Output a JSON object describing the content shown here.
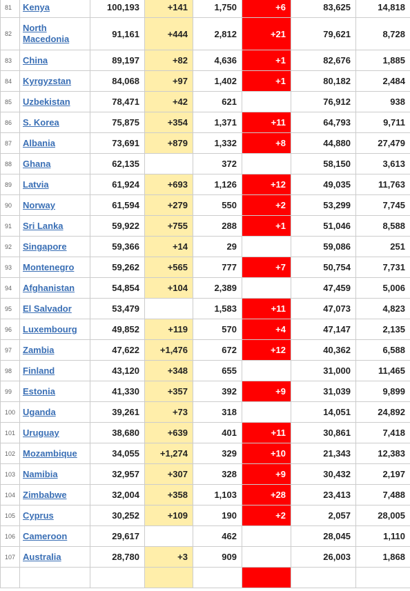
{
  "table": {
    "rows": [
      {
        "rank": "81",
        "country": "Kenya",
        "total_cases": "100,193",
        "new_cases": "+141",
        "total_deaths": "1,750",
        "new_deaths": "+6",
        "total_recovered": "83,625",
        "active_cases": "14,818"
      },
      {
        "rank": "82",
        "country": "North Macedonia",
        "total_cases": "91,161",
        "new_cases": "+444",
        "total_deaths": "2,812",
        "new_deaths": "+21",
        "total_recovered": "79,621",
        "active_cases": "8,728"
      },
      {
        "rank": "83",
        "country": "China",
        "total_cases": "89,197",
        "new_cases": "+82",
        "total_deaths": "4,636",
        "new_deaths": "+1",
        "total_recovered": "82,676",
        "active_cases": "1,885"
      },
      {
        "rank": "84",
        "country": "Kyrgyzstan",
        "total_cases": "84,068",
        "new_cases": "+97",
        "total_deaths": "1,402",
        "new_deaths": "+1",
        "total_recovered": "80,182",
        "active_cases": "2,484"
      },
      {
        "rank": "85",
        "country": "Uzbekistan",
        "total_cases": "78,471",
        "new_cases": "+42",
        "total_deaths": "621",
        "new_deaths": "",
        "total_recovered": "76,912",
        "active_cases": "938"
      },
      {
        "rank": "86",
        "country": "S. Korea",
        "total_cases": "75,875",
        "new_cases": "+354",
        "total_deaths": "1,371",
        "new_deaths": "+11",
        "total_recovered": "64,793",
        "active_cases": "9,711"
      },
      {
        "rank": "87",
        "country": "Albania",
        "total_cases": "73,691",
        "new_cases": "+879",
        "total_deaths": "1,332",
        "new_deaths": "+8",
        "total_recovered": "44,880",
        "active_cases": "27,479"
      },
      {
        "rank": "88",
        "country": "Ghana",
        "total_cases": "62,135",
        "new_cases": "",
        "total_deaths": "372",
        "new_deaths": "",
        "total_recovered": "58,150",
        "active_cases": "3,613"
      },
      {
        "rank": "89",
        "country": "Latvia",
        "total_cases": "61,924",
        "new_cases": "+693",
        "total_deaths": "1,126",
        "new_deaths": "+12",
        "total_recovered": "49,035",
        "active_cases": "11,763"
      },
      {
        "rank": "90",
        "country": "Norway",
        "total_cases": "61,594",
        "new_cases": "+279",
        "total_deaths": "550",
        "new_deaths": "+2",
        "total_recovered": "53,299",
        "active_cases": "7,745"
      },
      {
        "rank": "91",
        "country": "Sri Lanka",
        "total_cases": "59,922",
        "new_cases": "+755",
        "total_deaths": "288",
        "new_deaths": "+1",
        "total_recovered": "51,046",
        "active_cases": "8,588"
      },
      {
        "rank": "92",
        "country": "Singapore",
        "total_cases": "59,366",
        "new_cases": "+14",
        "total_deaths": "29",
        "new_deaths": "",
        "total_recovered": "59,086",
        "active_cases": "251"
      },
      {
        "rank": "93",
        "country": "Montenegro",
        "total_cases": "59,262",
        "new_cases": "+565",
        "total_deaths": "777",
        "new_deaths": "+7",
        "total_recovered": "50,754",
        "active_cases": "7,731"
      },
      {
        "rank": "94",
        "country": "Afghanistan",
        "total_cases": "54,854",
        "new_cases": "+104",
        "total_deaths": "2,389",
        "new_deaths": "",
        "total_recovered": "47,459",
        "active_cases": "5,006"
      },
      {
        "rank": "95",
        "country": "El Salvador",
        "total_cases": "53,479",
        "new_cases": "",
        "total_deaths": "1,583",
        "new_deaths": "+11",
        "total_recovered": "47,073",
        "active_cases": "4,823"
      },
      {
        "rank": "96",
        "country": "Luxembourg",
        "total_cases": "49,852",
        "new_cases": "+119",
        "total_deaths": "570",
        "new_deaths": "+4",
        "total_recovered": "47,147",
        "active_cases": "2,135"
      },
      {
        "rank": "97",
        "country": "Zambia",
        "total_cases": "47,622",
        "new_cases": "+1,476",
        "total_deaths": "672",
        "new_deaths": "+12",
        "total_recovered": "40,362",
        "active_cases": "6,588"
      },
      {
        "rank": "98",
        "country": "Finland",
        "total_cases": "43,120",
        "new_cases": "+348",
        "total_deaths": "655",
        "new_deaths": "",
        "total_recovered": "31,000",
        "active_cases": "11,465"
      },
      {
        "rank": "99",
        "country": "Estonia",
        "total_cases": "41,330",
        "new_cases": "+357",
        "total_deaths": "392",
        "new_deaths": "+9",
        "total_recovered": "31,039",
        "active_cases": "9,899"
      },
      {
        "rank": "100",
        "country": "Uganda",
        "total_cases": "39,261",
        "new_cases": "+73",
        "total_deaths": "318",
        "new_deaths": "",
        "total_recovered": "14,051",
        "active_cases": "24,892"
      },
      {
        "rank": "101",
        "country": "Uruguay",
        "total_cases": "38,680",
        "new_cases": "+639",
        "total_deaths": "401",
        "new_deaths": "+11",
        "total_recovered": "30,861",
        "active_cases": "7,418"
      },
      {
        "rank": "102",
        "country": "Mozambique",
        "total_cases": "34,055",
        "new_cases": "+1,274",
        "total_deaths": "329",
        "new_deaths": "+10",
        "total_recovered": "21,343",
        "active_cases": "12,383"
      },
      {
        "rank": "103",
        "country": "Namibia",
        "total_cases": "32,957",
        "new_cases": "+307",
        "total_deaths": "328",
        "new_deaths": "+9",
        "total_recovered": "30,432",
        "active_cases": "2,197"
      },
      {
        "rank": "104",
        "country": "Zimbabwe",
        "total_cases": "32,004",
        "new_cases": "+358",
        "total_deaths": "1,103",
        "new_deaths": "+28",
        "total_recovered": "23,413",
        "active_cases": "7,488"
      },
      {
        "rank": "105",
        "country": "Cyprus",
        "total_cases": "30,252",
        "new_cases": "+109",
        "total_deaths": "190",
        "new_deaths": "+2",
        "total_recovered": "2,057",
        "active_cases": "28,005"
      },
      {
        "rank": "106",
        "country": "Cameroon",
        "total_cases": "29,617",
        "new_cases": "",
        "total_deaths": "462",
        "new_deaths": "",
        "total_recovered": "28,045",
        "active_cases": "1,110"
      },
      {
        "rank": "107",
        "country": "Australia",
        "total_cases": "28,780",
        "new_cases": "+3",
        "total_deaths": "909",
        "new_deaths": "",
        "total_recovered": "26,003",
        "active_cases": "1,868"
      }
    ]
  },
  "colors": {
    "new_cases_highlight": "#ffeeaa",
    "new_deaths_highlight": "#ff0000",
    "link": "#3a6fb5",
    "border": "#cccccc"
  }
}
